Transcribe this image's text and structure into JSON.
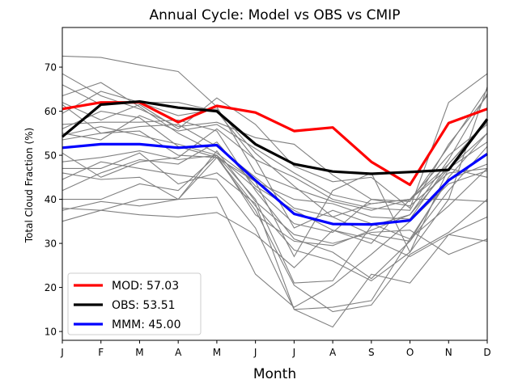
{
  "chart_data": {
    "type": "line",
    "title": "Annual Cycle: Model vs OBS vs CMIP",
    "xlabel": "Month",
    "ylabel": "Total Cloud Fraction (%)",
    "categories": [
      "J",
      "F",
      "M",
      "A",
      "M",
      "J",
      "J",
      "A",
      "S",
      "O",
      "N",
      "D"
    ],
    "ylim": [
      8,
      79
    ],
    "yticks": [
      10,
      20,
      30,
      40,
      50,
      60,
      70
    ],
    "grid": false,
    "legend_position": "lower-left",
    "series": [
      {
        "name": "MOD",
        "label": "MOD: 57.03",
        "color": "#ff0000",
        "values": [
          60.5,
          62.0,
          62.0,
          57.5,
          61.2,
          59.7,
          55.5,
          56.3,
          48.5,
          43.3,
          57.3,
          60.5
        ]
      },
      {
        "name": "OBS",
        "label": "OBS: 53.51",
        "color": "#000000",
        "values": [
          54.2,
          61.5,
          62.2,
          60.8,
          60.0,
          52.5,
          48.0,
          46.3,
          45.8,
          46.2,
          46.7,
          58.2
        ]
      },
      {
        "name": "MMM",
        "label": "MMM: 45.00",
        "color": "#0000ff",
        "values": [
          51.7,
          52.5,
          52.5,
          51.7,
          52.3,
          44.3,
          36.7,
          34.4,
          34.3,
          35.2,
          44.3,
          50.3
        ]
      }
    ],
    "cmip_color": "#808080",
    "cmip_models": [
      [
        72.5,
        72.2,
        70.5,
        69.0,
        61.0,
        46.0,
        42.5,
        39.5,
        37.5,
        40.0,
        48.0,
        58.0
      ],
      [
        68.5,
        63.5,
        60.5,
        56.5,
        57.5,
        54.0,
        52.5,
        45.5,
        40.0,
        39.5,
        52.0,
        65.0
      ],
      [
        66.0,
        61.5,
        62.0,
        62.0,
        60.0,
        49.0,
        45.0,
        40.0,
        38.0,
        37.5,
        52.5,
        63.5
      ],
      [
        63.5,
        66.5,
        61.0,
        55.0,
        50.5,
        44.0,
        40.0,
        39.0,
        36.0,
        35.5,
        48.0,
        57.5
      ],
      [
        62.0,
        58.0,
        61.5,
        56.0,
        63.0,
        57.0,
        47.5,
        44.0,
        45.0,
        38.0,
        62.0,
        68.5
      ],
      [
        61.5,
        55.0,
        56.5,
        57.0,
        52.0,
        45.0,
        38.0,
        36.0,
        32.0,
        30.5,
        45.0,
        55.0
      ],
      [
        57.0,
        57.5,
        57.5,
        58.0,
        55.5,
        42.0,
        31.0,
        28.0,
        22.0,
        30.5,
        42.0,
        52.0
      ],
      [
        56.0,
        60.0,
        58.5,
        52.0,
        49.5,
        38.5,
        28.5,
        26.0,
        21.5,
        28.0,
        47.0,
        55.0
      ],
      [
        55.0,
        53.5,
        59.0,
        55.5,
        57.0,
        51.5,
        46.0,
        41.0,
        39.0,
        40.0,
        47.0,
        53.0
      ],
      [
        54.5,
        56.5,
        54.5,
        52.5,
        50.0,
        40.0,
        21.0,
        21.5,
        34.0,
        36.5,
        49.0,
        64.0
      ],
      [
        53.5,
        55.0,
        55.5,
        50.0,
        49.5,
        44.0,
        27.0,
        42.0,
        46.0,
        28.0,
        40.0,
        65.5
      ],
      [
        50.5,
        45.0,
        48.5,
        49.5,
        56.0,
        49.0,
        33.5,
        37.5,
        34.5,
        31.0,
        44.5,
        48.0
      ],
      [
        48.5,
        49.5,
        51.0,
        49.0,
        50.0,
        42.5,
        34.5,
        32.5,
        40.0,
        38.5,
        46.0,
        47.0
      ],
      [
        47.0,
        47.0,
        50.5,
        43.5,
        46.0,
        39.0,
        15.0,
        11.0,
        23.0,
        21.0,
        32.0,
        30.5
      ],
      [
        46.0,
        44.5,
        45.0,
        40.0,
        49.5,
        37.5,
        20.5,
        14.5,
        16.0,
        27.5,
        32.5,
        40.0
      ],
      [
        44.5,
        48.5,
        47.0,
        45.5,
        44.5,
        33.5,
        15.0,
        15.5,
        17.0,
        31.0,
        38.5,
        47.0
      ],
      [
        40.0,
        40.0,
        43.5,
        42.0,
        50.0,
        36.5,
        30.5,
        29.5,
        33.0,
        36.5,
        47.0,
        45.0
      ],
      [
        38.0,
        37.5,
        40.0,
        40.0,
        51.0,
        39.5,
        32.0,
        30.0,
        32.5,
        33.0,
        27.5,
        31.0
      ],
      [
        37.5,
        39.5,
        38.5,
        40.0,
        40.5,
        23.0,
        15.5,
        20.5,
        27.5,
        35.0,
        43.5,
        46.5
      ],
      [
        35.0,
        37.5,
        36.5,
        36.0,
        37.0,
        32.0,
        24.5,
        33.0,
        30.0,
        40.0,
        40.0,
        39.5
      ],
      [
        42.0,
        46.0,
        49.0,
        48.0,
        53.0,
        43.0,
        37.5,
        33.0,
        31.0,
        27.0,
        32.0,
        36.0
      ],
      [
        59.5,
        64.5,
        62.0,
        59.0,
        60.5,
        50.5,
        43.0,
        36.0,
        39.0,
        40.0,
        50.0,
        57.0
      ]
    ]
  }
}
